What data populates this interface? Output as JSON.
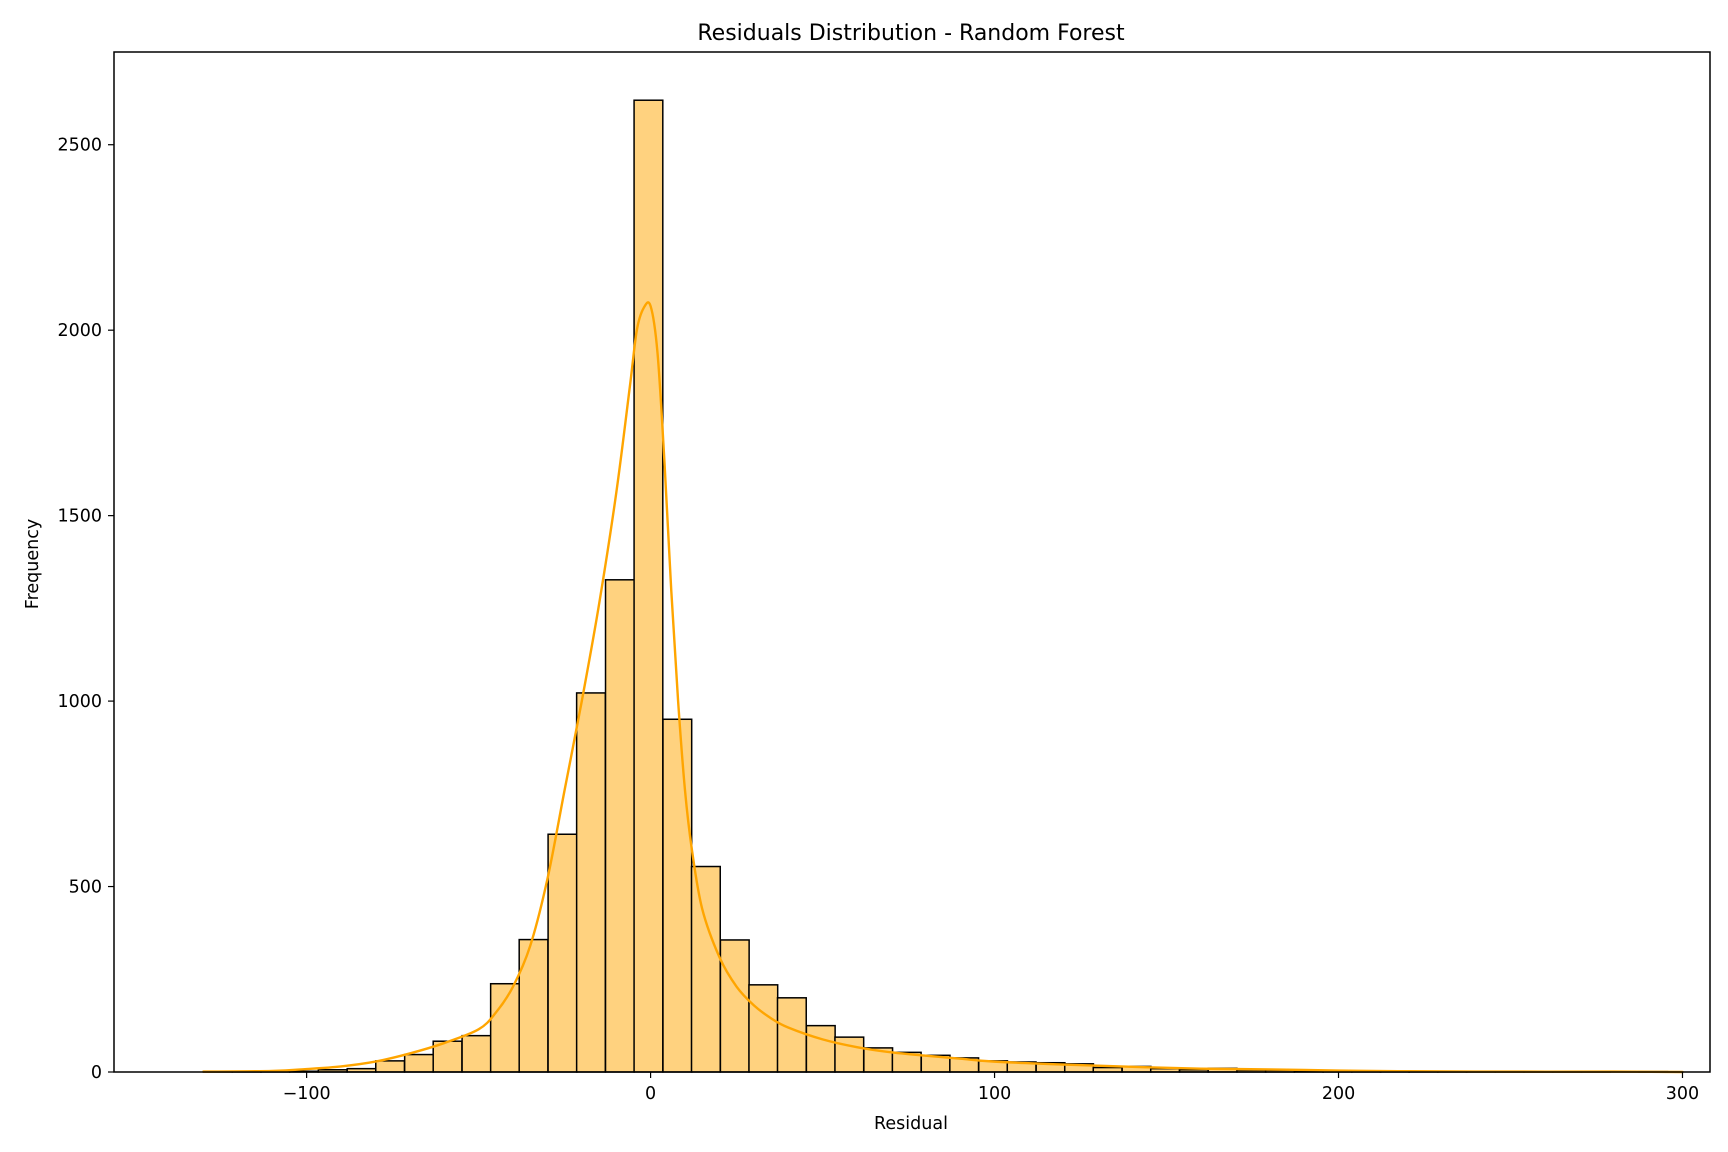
{
  "chart_data": {
    "type": "bar",
    "title": "Residuals Distribution - Random Forest",
    "xlabel": "Residual",
    "ylabel": "Frequency",
    "xlim": [
      -156,
      308
    ],
    "ylim": [
      0,
      2750
    ],
    "x_ticks": [
      -100,
      0,
      100,
      200,
      300
    ],
    "x_tick_labels": [
      "−100",
      "0",
      "100",
      "200",
      "300"
    ],
    "y_ticks": [
      0,
      500,
      1000,
      1500,
      2000,
      2500
    ],
    "y_tick_labels": [
      "0",
      "500",
      "1000",
      "1500",
      "2000",
      "2500"
    ],
    "grid": false,
    "legend": "none",
    "bin_width": 8.35,
    "bins": [
      {
        "x0": -130.0,
        "count": 1
      },
      {
        "x0": -121.6,
        "count": 1
      },
      {
        "x0": -113.3,
        "count": 1
      },
      {
        "x0": -104.9,
        "count": 2
      },
      {
        "x0": -96.6,
        "count": 6
      },
      {
        "x0": -88.2,
        "count": 9
      },
      {
        "x0": -79.9,
        "count": 30
      },
      {
        "x0": -71.5,
        "count": 47
      },
      {
        "x0": -63.2,
        "count": 83
      },
      {
        "x0": -54.8,
        "count": 98
      },
      {
        "x0": -46.5,
        "count": 238
      },
      {
        "x0": -38.2,
        "count": 357
      },
      {
        "x0": -29.8,
        "count": 641
      },
      {
        "x0": -21.5,
        "count": 1022
      },
      {
        "x0": -13.1,
        "count": 1327
      },
      {
        "x0": -4.8,
        "count": 2620
      },
      {
        "x0": 3.6,
        "count": 951
      },
      {
        "x0": 11.9,
        "count": 554
      },
      {
        "x0": 20.3,
        "count": 356
      },
      {
        "x0": 28.6,
        "count": 235
      },
      {
        "x0": 36.9,
        "count": 200
      },
      {
        "x0": 45.3,
        "count": 125
      },
      {
        "x0": 53.6,
        "count": 94
      },
      {
        "x0": 62.0,
        "count": 65
      },
      {
        "x0": 70.3,
        "count": 53
      },
      {
        "x0": 78.7,
        "count": 45
      },
      {
        "x0": 87.0,
        "count": 38
      },
      {
        "x0": 95.4,
        "count": 30
      },
      {
        "x0": 103.7,
        "count": 27
      },
      {
        "x0": 112.1,
        "count": 25
      },
      {
        "x0": 120.4,
        "count": 22
      },
      {
        "x0": 128.7,
        "count": 12
      },
      {
        "x0": 137.1,
        "count": 15
      },
      {
        "x0": 145.4,
        "count": 9
      },
      {
        "x0": 153.8,
        "count": 6
      },
      {
        "x0": 162.1,
        "count": 10
      },
      {
        "x0": 170.5,
        "count": 5
      },
      {
        "x0": 178.8,
        "count": 5
      },
      {
        "x0": 187.2,
        "count": 4
      },
      {
        "x0": 195.5,
        "count": 3
      },
      {
        "x0": 203.9,
        "count": 2
      },
      {
        "x0": 212.2,
        "count": 2
      },
      {
        "x0": 220.5,
        "count": 1
      },
      {
        "x0": 228.9,
        "count": 1
      },
      {
        "x0": 237.2,
        "count": 1
      },
      {
        "x0": 245.6,
        "count": 1
      },
      {
        "x0": 253.9,
        "count": 1
      },
      {
        "x0": 262.3,
        "count": 1
      },
      {
        "x0": 270.6,
        "count": 1
      },
      {
        "x0": 279.0,
        "count": 0
      },
      {
        "x0": 287.3,
        "count": 1
      }
    ],
    "kde": {
      "x": [
        -130,
        -110,
        -100,
        -90,
        -80,
        -70,
        -60,
        -50,
        -45,
        -40,
        -35,
        -30,
        -25,
        -20,
        -15,
        -10,
        -6,
        -4,
        -2,
        0,
        2,
        4,
        6,
        8,
        10,
        12,
        15,
        20,
        25,
        30,
        35,
        40,
        50,
        60,
        70,
        80,
        90,
        100,
        120,
        140,
        160,
        180,
        200,
        220,
        250,
        280,
        300
      ],
      "y": [
        1,
        3,
        8,
        15,
        28,
        50,
        78,
        115,
        160,
        230,
        340,
        520,
        760,
        1000,
        1260,
        1560,
        1850,
        2000,
        2060,
        2065,
        1940,
        1650,
        1300,
        1000,
        760,
        600,
        440,
        310,
        230,
        180,
        145,
        120,
        88,
        67,
        53,
        44,
        36,
        28,
        20,
        14,
        9,
        7,
        4,
        2,
        1,
        1,
        0
      ]
    },
    "colors": {
      "bar_fill": "#ffd27f",
      "bar_edge": "#000000",
      "kde_line": "#ffa500"
    }
  }
}
